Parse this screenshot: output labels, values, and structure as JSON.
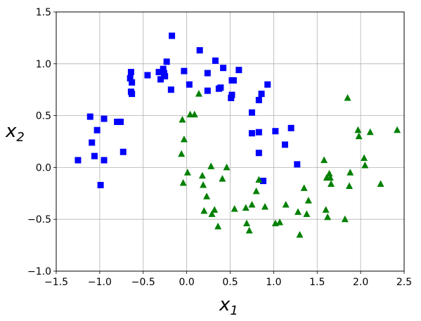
{
  "chart_data": {
    "type": "scatter",
    "title": "",
    "xlabel": "x",
    "xlabel_sub": "1",
    "ylabel": "x",
    "ylabel_sub": "2",
    "xlim": [
      -1.5,
      2.5
    ],
    "ylim": [
      -1.0,
      1.5
    ],
    "xticks": [
      -1.5,
      -1.0,
      -0.5,
      0.0,
      0.5,
      1.0,
      1.5,
      2.0,
      2.5
    ],
    "xtick_labels": [
      "−1.5",
      "−1.0",
      "−0.5",
      "0.0",
      "0.5",
      "1.0",
      "1.5",
      "2.0",
      "2.5"
    ],
    "yticks": [
      -1.0,
      -0.5,
      0.0,
      0.5,
      1.0,
      1.5
    ],
    "ytick_labels": [
      "−1.0",
      "−0.5",
      "0.0",
      "0.5",
      "1.0",
      "1.5"
    ],
    "grid": true,
    "legend": "none",
    "series": [
      {
        "marker": "square",
        "color": "#0000ff",
        "points": [
          [
            -1.25,
            0.07
          ],
          [
            -1.11,
            0.49
          ],
          [
            -1.09,
            0.24
          ],
          [
            -1.06,
            0.11
          ],
          [
            -1.03,
            0.36
          ],
          [
            -0.99,
            -0.17
          ],
          [
            -0.95,
            0.47
          ],
          [
            -0.95,
            0.07
          ],
          [
            -0.8,
            0.44
          ],
          [
            -0.76,
            0.44
          ],
          [
            -0.73,
            0.15
          ],
          [
            -0.65,
            0.86
          ],
          [
            -0.64,
            0.92
          ],
          [
            -0.64,
            0.73
          ],
          [
            -0.63,
            0.82
          ],
          [
            -0.63,
            0.71
          ],
          [
            -0.45,
            0.89
          ],
          [
            -0.32,
            0.92
          ],
          [
            -0.3,
            0.85
          ],
          [
            -0.27,
            0.95
          ],
          [
            -0.26,
            0.91
          ],
          [
            -0.25,
            0.88
          ],
          [
            -0.23,
            1.02
          ],
          [
            -0.18,
            0.75
          ],
          [
            -0.17,
            1.27
          ],
          [
            -0.03,
            0.93
          ],
          [
            0.03,
            0.8
          ],
          [
            0.15,
            1.13
          ],
          [
            0.24,
            0.74
          ],
          [
            0.24,
            0.91
          ],
          [
            0.33,
            1.03
          ],
          [
            0.37,
            0.76
          ],
          [
            0.39,
            0.77
          ],
          [
            0.42,
            0.96
          ],
          [
            0.51,
            0.67
          ],
          [
            0.52,
            0.84
          ],
          [
            0.52,
            0.7
          ],
          [
            0.54,
            0.84
          ],
          [
            0.6,
            0.94
          ],
          [
            0.75,
            0.53
          ],
          [
            0.75,
            0.33
          ],
          [
            0.83,
            0.65
          ],
          [
            0.83,
            0.34
          ],
          [
            0.83,
            0.14
          ],
          [
            0.86,
            0.71
          ],
          [
            0.88,
            -0.13
          ],
          [
            0.93,
            0.8
          ],
          [
            1.02,
            0.35
          ],
          [
            1.13,
            0.22
          ],
          [
            1.2,
            0.38
          ],
          [
            1.27,
            0.03
          ]
        ]
      },
      {
        "marker": "triangle",
        "color": "#008000",
        "points": [
          [
            -0.06,
            0.13
          ],
          [
            -0.05,
            0.46
          ],
          [
            -0.04,
            -0.15
          ],
          [
            -0.03,
            0.27
          ],
          [
            0.01,
            -0.05
          ],
          [
            0.04,
            0.51
          ],
          [
            0.09,
            0.51
          ],
          [
            0.14,
            0.71
          ],
          [
            0.18,
            -0.08
          ],
          [
            0.19,
            -0.17
          ],
          [
            0.2,
            -0.42
          ],
          [
            0.23,
            -0.28
          ],
          [
            0.28,
            0.01
          ],
          [
            0.29,
            -0.45
          ],
          [
            0.32,
            -0.41
          ],
          [
            0.36,
            -0.57
          ],
          [
            0.41,
            -0.11
          ],
          [
            0.46,
            0.0
          ],
          [
            0.55,
            -0.4
          ],
          [
            0.68,
            -0.39
          ],
          [
            0.69,
            -0.54
          ],
          [
            0.72,
            -0.61
          ],
          [
            0.75,
            -0.36
          ],
          [
            0.8,
            -0.23
          ],
          [
            0.83,
            -0.12
          ],
          [
            0.9,
            -0.38
          ],
          [
            1.02,
            -0.54
          ],
          [
            1.07,
            -0.53
          ],
          [
            1.14,
            -0.36
          ],
          [
            1.28,
            -0.43
          ],
          [
            1.3,
            -0.65
          ],
          [
            1.35,
            -0.2
          ],
          [
            1.38,
            -0.45
          ],
          [
            1.4,
            -0.32
          ],
          [
            1.58,
            0.07
          ],
          [
            1.6,
            -0.41
          ],
          [
            1.61,
            -0.1
          ],
          [
            1.62,
            -0.48
          ],
          [
            1.64,
            -0.06
          ],
          [
            1.65,
            -0.1
          ],
          [
            1.66,
            -0.16
          ],
          [
            1.82,
            -0.5
          ],
          [
            1.85,
            0.67
          ],
          [
            1.87,
            -0.18
          ],
          [
            1.88,
            -0.05
          ],
          [
            1.97,
            0.36
          ],
          [
            1.98,
            0.3
          ],
          [
            2.04,
            0.09
          ],
          [
            2.05,
            0.02
          ],
          [
            2.11,
            0.34
          ],
          [
            2.23,
            -0.16
          ],
          [
            2.42,
            0.36
          ]
        ]
      }
    ]
  }
}
